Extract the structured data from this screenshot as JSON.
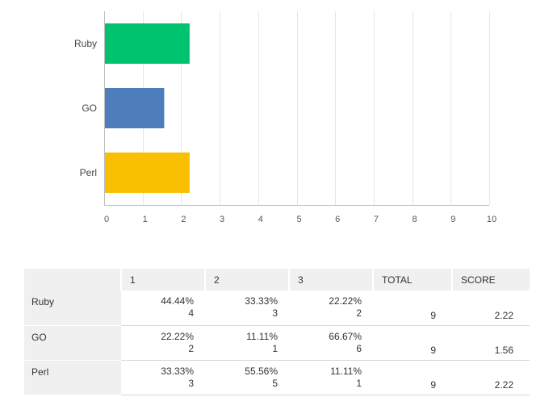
{
  "chart_data": {
    "type": "bar",
    "orientation": "horizontal",
    "categories": [
      "Ruby",
      "GO",
      "Perl"
    ],
    "values": [
      2.22,
      1.56,
      2.22
    ],
    "colors": [
      "#00c36f",
      "#4f7ebc",
      "#f8c000"
    ],
    "xlim": [
      0,
      10
    ],
    "xticks": [
      0,
      1,
      2,
      3,
      4,
      5,
      6,
      7,
      8,
      9,
      10
    ],
    "grid": true,
    "title": "",
    "xlabel": "",
    "ylabel": ""
  },
  "table": {
    "headers": [
      "",
      "1",
      "2",
      "3",
      "TOTAL",
      "SCORE"
    ],
    "rows": [
      {
        "label": "Ruby",
        "cells": [
          {
            "pct": "44.44%",
            "count": "4"
          },
          {
            "pct": "33.33%",
            "count": "3"
          },
          {
            "pct": "22.22%",
            "count": "2"
          }
        ],
        "total": "9",
        "score": "2.22"
      },
      {
        "label": "GO",
        "cells": [
          {
            "pct": "22.22%",
            "count": "2"
          },
          {
            "pct": "11.11%",
            "count": "1"
          },
          {
            "pct": "66.67%",
            "count": "6"
          }
        ],
        "total": "9",
        "score": "1.56"
      },
      {
        "label": "Perl",
        "cells": [
          {
            "pct": "33.33%",
            "count": "3"
          },
          {
            "pct": "55.56%",
            "count": "5"
          },
          {
            "pct": "11.11%",
            "count": "1"
          }
        ],
        "total": "9",
        "score": "2.22"
      }
    ]
  }
}
